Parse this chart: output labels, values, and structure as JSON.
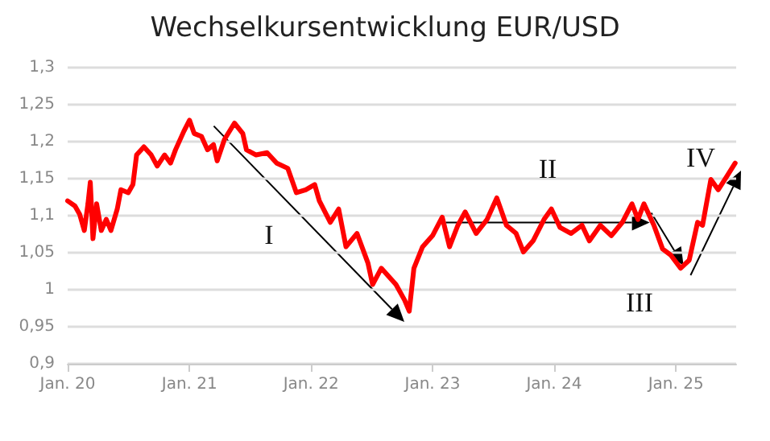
{
  "chart_data": {
    "type": "line",
    "title": "Wechselkursentwicklung EUR/USD",
    "xlim": [
      "2020-01-01",
      "2025-07-01"
    ],
    "xticks": [
      {
        "value": "2020-01-01",
        "label": "Jan. 20"
      },
      {
        "value": "2021-01-01",
        "label": "Jan. 21"
      },
      {
        "value": "2022-01-01",
        "label": "Jan. 22"
      },
      {
        "value": "2023-01-01",
        "label": "Jan. 23"
      },
      {
        "value": "2024-01-01",
        "label": "Jan. 24"
      },
      {
        "value": "2025-01-01",
        "label": "Jan. 25"
      }
    ],
    "ylim": [
      0.9,
      1.3
    ],
    "yticks": [
      {
        "value": 0.9,
        "label": "0,9"
      },
      {
        "value": 0.95,
        "label": "0,95"
      },
      {
        "value": 1,
        "label": "1"
      },
      {
        "value": 1.05,
        "label": "1,05"
      },
      {
        "value": 1.1,
        "label": "1,1"
      },
      {
        "value": 1.15,
        "label": "1,15"
      },
      {
        "value": 1.2,
        "label": "1,2"
      },
      {
        "value": 1.25,
        "label": "1,25"
      },
      {
        "value": 1.3,
        "label": "1,3"
      }
    ],
    "grid": "y",
    "marker": "none",
    "line_style": "solid",
    "series": [
      {
        "color": "#ff0000",
        "x": [
          "2020-01-01",
          "2020-01-23",
          "2020-02-06",
          "2020-02-20",
          "2020-03-02",
          "2020-03-09",
          "2020-03-17",
          "2020-03-28",
          "2020-04-11",
          "2020-04-26",
          "2020-05-10",
          "2020-05-29",
          "2020-06-09",
          "2020-07-01",
          "2020-07-15",
          "2020-07-26",
          "2020-08-17",
          "2020-09-08",
          "2020-09-26",
          "2020-10-18",
          "2020-11-05",
          "2020-11-20",
          "2020-12-15",
          "2021-01-01",
          "2021-01-15",
          "2021-02-06",
          "2021-02-24",
          "2021-03-14",
          "2021-03-25",
          "2021-04-16",
          "2021-05-16",
          "2021-06-10",
          "2021-06-21",
          "2021-07-20",
          "2021-08-22",
          "2021-09-20",
          "2021-10-23",
          "2021-11-18",
          "2021-12-16",
          "2022-01-12",
          "2022-01-26",
          "2022-02-28",
          "2022-03-25",
          "2022-04-16",
          "2022-05-19",
          "2022-06-21",
          "2022-07-05",
          "2022-07-31",
          "2022-09-13",
          "2022-10-09",
          "2022-10-23",
          "2022-11-06",
          "2022-12-02",
          "2023-01-01",
          "2023-01-30",
          "2023-02-21",
          "2023-03-18",
          "2023-04-09",
          "2023-05-12",
          "2023-06-14",
          "2023-07-13",
          "2023-08-11",
          "2023-09-09",
          "2023-10-01",
          "2023-10-30",
          "2023-12-02",
          "2023-12-24",
          "2024-01-19",
          "2024-02-21",
          "2024-03-25",
          "2024-04-16",
          "2024-05-19",
          "2024-06-21",
          "2024-07-24",
          "2024-08-22",
          "2024-09-09",
          "2024-09-27",
          "2024-10-27",
          "2024-11-22",
          "2024-12-16",
          "2025-01-15",
          "2025-02-10",
          "2025-03-07",
          "2025-03-22",
          "2025-04-16",
          "2025-05-08",
          "2025-06-03",
          "2025-06-28"
        ],
        "values": [
          1.12,
          1.113,
          1.102,
          1.08,
          1.116,
          1.145,
          1.069,
          1.116,
          1.08,
          1.095,
          1.08,
          1.109,
          1.135,
          1.131,
          1.142,
          1.182,
          1.193,
          1.182,
          1.167,
          1.182,
          1.171,
          1.189,
          1.214,
          1.229,
          1.211,
          1.207,
          1.189,
          1.196,
          1.174,
          1.203,
          1.225,
          1.211,
          1.189,
          1.182,
          1.185,
          1.171,
          1.164,
          1.131,
          1.135,
          1.142,
          1.12,
          1.091,
          1.109,
          1.058,
          1.076,
          1.036,
          1.007,
          1.029,
          1.007,
          0.986,
          0.971,
          1.029,
          1.058,
          1.073,
          1.098,
          1.058,
          1.087,
          1.105,
          1.076,
          1.095,
          1.124,
          1.087,
          1.076,
          1.051,
          1.066,
          1.095,
          1.109,
          1.084,
          1.076,
          1.087,
          1.066,
          1.087,
          1.073,
          1.091,
          1.116,
          1.095,
          1.116,
          1.087,
          1.055,
          1.047,
          1.029,
          1.04,
          1.091,
          1.087,
          1.149,
          1.135,
          1.153,
          1.171
        ]
      }
    ],
    "annotations": [
      "I",
      "II",
      "III",
      "IV"
    ]
  }
}
